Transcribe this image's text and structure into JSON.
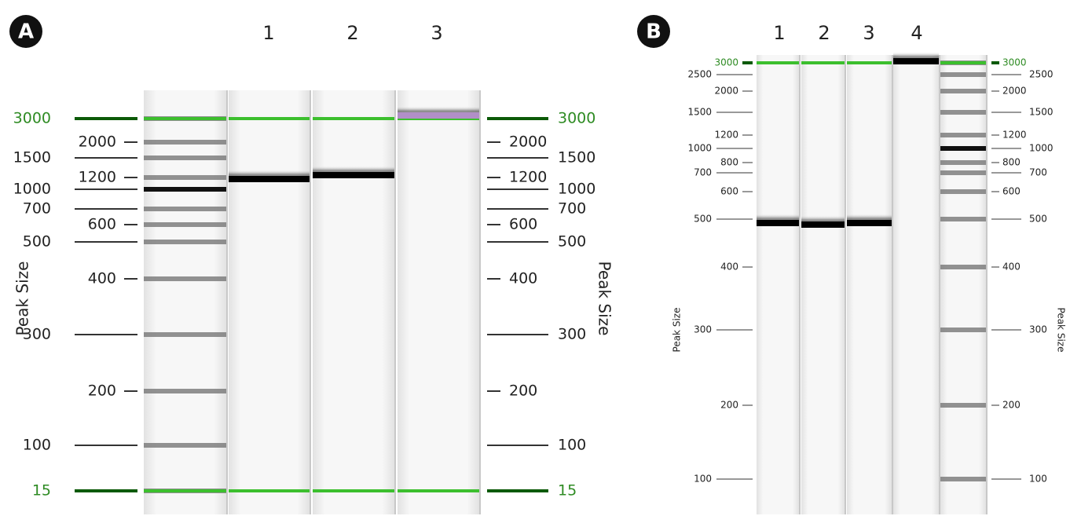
{
  "panels": [
    {
      "label": "A",
      "lanes": [
        "1",
        "2",
        "3"
      ],
      "axis_title_left": "Peak Size",
      "axis_title_right": "Peak Size",
      "left_axis": [
        "3000",
        "2000",
        "1500",
        "1200",
        "1000",
        "700",
        "600",
        "500",
        "400",
        "300",
        "200",
        "100",
        "15"
      ],
      "right_axis": [
        "3000",
        "2000",
        "1500",
        "1200",
        "1000",
        "700",
        "600",
        "500",
        "400",
        "300",
        "200",
        "100",
        "15"
      ]
    },
    {
      "label": "B",
      "lanes": [
        "1",
        "2",
        "3",
        "4"
      ],
      "axis_title_left": "Peak Size",
      "axis_title_right": "Peak Size",
      "left_axis": [
        "3000",
        "2500",
        "2000",
        "1500",
        "1200",
        "1000",
        "800",
        "700",
        "600",
        "500",
        "400",
        "300",
        "200",
        "100"
      ],
      "right_axis": [
        "3000",
        "2500",
        "2000",
        "1500",
        "1200",
        "1000",
        "800",
        "700",
        "600",
        "500",
        "400",
        "300",
        "200",
        "100"
      ]
    }
  ]
}
